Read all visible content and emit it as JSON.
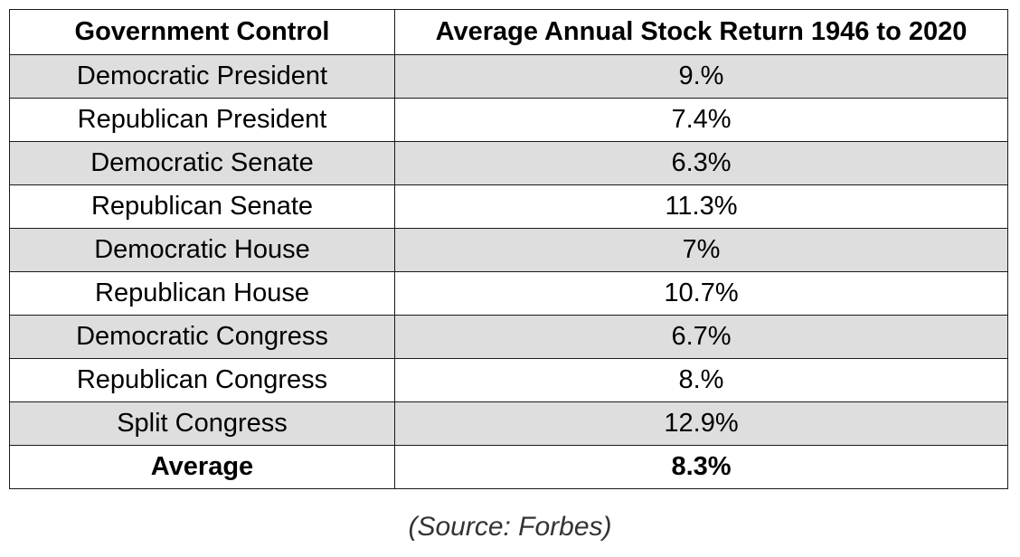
{
  "table": {
    "headers": [
      "Government Control",
      "Average Annual Stock Return 1946 to 2020"
    ],
    "rows": [
      {
        "label": "Democratic President",
        "value": "9.%"
      },
      {
        "label": "Republican President",
        "value": "7.4%"
      },
      {
        "label": "Democratic Senate",
        "value": "6.3%"
      },
      {
        "label": "Republican Senate",
        "value": "11.3%"
      },
      {
        "label": "Democratic House",
        "value": "7%"
      },
      {
        "label": "Republican House",
        "value": "10.7%"
      },
      {
        "label": "Democratic Congress",
        "value": "6.7%"
      },
      {
        "label": "Republican Congress",
        "value": "8.%"
      },
      {
        "label": "Split Congress",
        "value": "12.9%"
      }
    ],
    "total": {
      "label": "Average",
      "value": "8.3%"
    },
    "shade_color": "#dedede",
    "border_color": "#1a1a1a"
  },
  "source": "(Source: Forbes)"
}
